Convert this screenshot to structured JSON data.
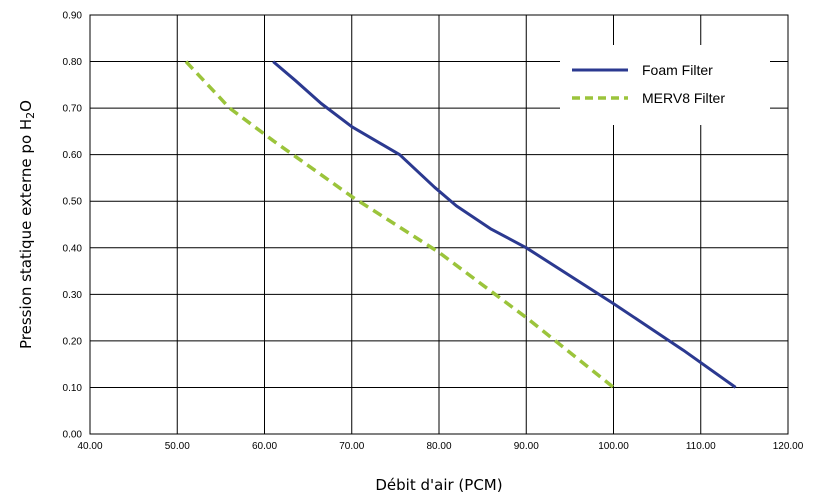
{
  "chart_data": {
    "type": "line",
    "title": "",
    "xlabel": "Débit d'air (PCM)",
    "ylabel": {
      "prefix": "Pression statique externe po H",
      "sub": "2",
      "suffix": "O"
    },
    "xlim": [
      40,
      120
    ],
    "ylim": [
      0,
      0.9
    ],
    "x_ticks": [
      40,
      50,
      60,
      70,
      80,
      90,
      100,
      110,
      120
    ],
    "y_ticks": [
      0,
      0.1,
      0.2,
      0.3,
      0.4,
      0.5,
      0.6,
      0.7,
      0.8,
      0.9
    ],
    "x_tick_labels": [
      "40.00",
      "50.00",
      "60.00",
      "70.00",
      "80.00",
      "90.00",
      "100.00",
      "110.00",
      "120.00"
    ],
    "y_tick_labels": [
      "0.00",
      "0.10",
      "0.20",
      "0.30",
      "0.40",
      "0.50",
      "0.60",
      "0.70",
      "0.80",
      "0.90"
    ],
    "grid": "both",
    "legend_position": "top-right",
    "series": [
      {
        "name": "Foam Filter",
        "color": "#2b3990",
        "dash": "solid",
        "points": [
          [
            61,
            0.8
          ],
          [
            63.5,
            0.76
          ],
          [
            66.5,
            0.71
          ],
          [
            70,
            0.66
          ],
          [
            75.5,
            0.6
          ],
          [
            79.5,
            0.53
          ],
          [
            82,
            0.49
          ],
          [
            86,
            0.44
          ],
          [
            90,
            0.4
          ],
          [
            100,
            0.28
          ],
          [
            108,
            0.18
          ],
          [
            114,
            0.1
          ]
        ]
      },
      {
        "name": "MERV8 Filter",
        "color": "#9bc43b",
        "dash": "dashed",
        "points": [
          [
            51,
            0.8
          ],
          [
            56,
            0.7
          ],
          [
            61,
            0.63
          ],
          [
            70,
            0.51
          ],
          [
            80,
            0.39
          ],
          [
            90,
            0.25
          ],
          [
            100,
            0.1
          ]
        ]
      }
    ]
  }
}
